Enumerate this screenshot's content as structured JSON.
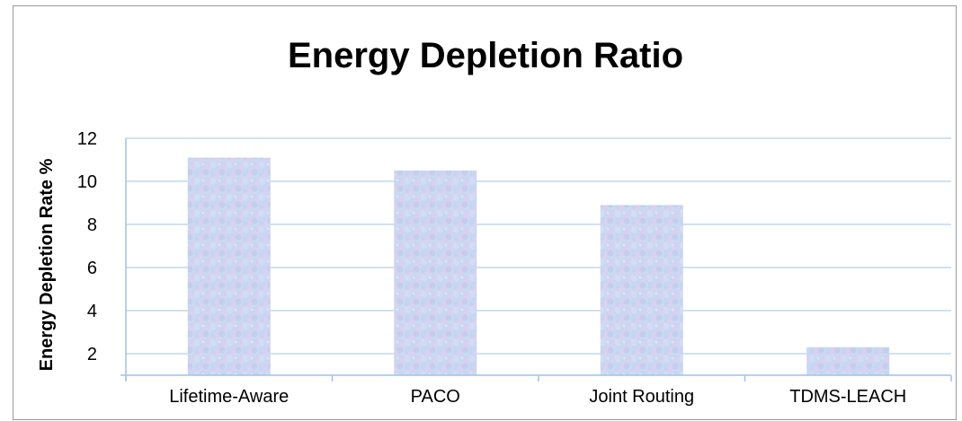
{
  "chart_data": {
    "type": "bar",
    "title": "Energy Depletion Ratio",
    "xlabel": "",
    "ylabel": "Energy Depletion Rate %",
    "categories": [
      "Lifetime-Aware",
      "PACO",
      "Joint Routing",
      "TDMS-LEACH"
    ],
    "values": [
      11.1,
      10.5,
      8.9,
      2.3
    ],
    "ylim": [
      1,
      12
    ],
    "yticks": [
      "2",
      "4",
      "6",
      "8",
      "10",
      "12"
    ],
    "grid": true,
    "legend": "none",
    "colors": {
      "bar_light": "#d3e6f8",
      "bar_mid": "#b8d2f0",
      "bar_pink": "#e2cdee",
      "gridline": "#c4d9ec",
      "axis": "#9fc3e3"
    }
  }
}
